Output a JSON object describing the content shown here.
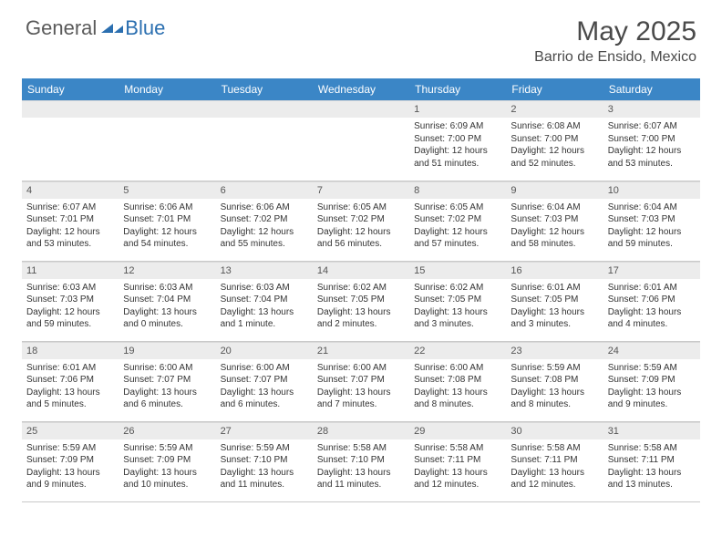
{
  "logo": {
    "text_general": "General",
    "text_blue": "Blue"
  },
  "title": "May 2025",
  "location": "Barrio de Ensido, Mexico",
  "colors": {
    "header_bg": "#3b86c6",
    "header_text": "#ffffff",
    "daynum_bg": "#ececec",
    "border": "#c9c9c9",
    "body_text": "#333333",
    "title_text": "#4a4a4a",
    "logo_general": "#5a5a5a",
    "logo_blue": "#2b6fb0"
  },
  "typography": {
    "title_fontsize": 30,
    "location_fontsize": 16,
    "header_cell_fontsize": 12,
    "daynum_fontsize": 11,
    "body_fontsize": 10
  },
  "day_headers": [
    "Sunday",
    "Monday",
    "Tuesday",
    "Wednesday",
    "Thursday",
    "Friday",
    "Saturday"
  ],
  "weeks": [
    [
      {
        "day": "",
        "sunrise": "",
        "sunset": "",
        "daylight": ""
      },
      {
        "day": "",
        "sunrise": "",
        "sunset": "",
        "daylight": ""
      },
      {
        "day": "",
        "sunrise": "",
        "sunset": "",
        "daylight": ""
      },
      {
        "day": "",
        "sunrise": "",
        "sunset": "",
        "daylight": ""
      },
      {
        "day": "1",
        "sunrise": "Sunrise: 6:09 AM",
        "sunset": "Sunset: 7:00 PM",
        "daylight": "Daylight: 12 hours and 51 minutes."
      },
      {
        "day": "2",
        "sunrise": "Sunrise: 6:08 AM",
        "sunset": "Sunset: 7:00 PM",
        "daylight": "Daylight: 12 hours and 52 minutes."
      },
      {
        "day": "3",
        "sunrise": "Sunrise: 6:07 AM",
        "sunset": "Sunset: 7:00 PM",
        "daylight": "Daylight: 12 hours and 53 minutes."
      }
    ],
    [
      {
        "day": "4",
        "sunrise": "Sunrise: 6:07 AM",
        "sunset": "Sunset: 7:01 PM",
        "daylight": "Daylight: 12 hours and 53 minutes."
      },
      {
        "day": "5",
        "sunrise": "Sunrise: 6:06 AM",
        "sunset": "Sunset: 7:01 PM",
        "daylight": "Daylight: 12 hours and 54 minutes."
      },
      {
        "day": "6",
        "sunrise": "Sunrise: 6:06 AM",
        "sunset": "Sunset: 7:02 PM",
        "daylight": "Daylight: 12 hours and 55 minutes."
      },
      {
        "day": "7",
        "sunrise": "Sunrise: 6:05 AM",
        "sunset": "Sunset: 7:02 PM",
        "daylight": "Daylight: 12 hours and 56 minutes."
      },
      {
        "day": "8",
        "sunrise": "Sunrise: 6:05 AM",
        "sunset": "Sunset: 7:02 PM",
        "daylight": "Daylight: 12 hours and 57 minutes."
      },
      {
        "day": "9",
        "sunrise": "Sunrise: 6:04 AM",
        "sunset": "Sunset: 7:03 PM",
        "daylight": "Daylight: 12 hours and 58 minutes."
      },
      {
        "day": "10",
        "sunrise": "Sunrise: 6:04 AM",
        "sunset": "Sunset: 7:03 PM",
        "daylight": "Daylight: 12 hours and 59 minutes."
      }
    ],
    [
      {
        "day": "11",
        "sunrise": "Sunrise: 6:03 AM",
        "sunset": "Sunset: 7:03 PM",
        "daylight": "Daylight: 12 hours and 59 minutes."
      },
      {
        "day": "12",
        "sunrise": "Sunrise: 6:03 AM",
        "sunset": "Sunset: 7:04 PM",
        "daylight": "Daylight: 13 hours and 0 minutes."
      },
      {
        "day": "13",
        "sunrise": "Sunrise: 6:03 AM",
        "sunset": "Sunset: 7:04 PM",
        "daylight": "Daylight: 13 hours and 1 minute."
      },
      {
        "day": "14",
        "sunrise": "Sunrise: 6:02 AM",
        "sunset": "Sunset: 7:05 PM",
        "daylight": "Daylight: 13 hours and 2 minutes."
      },
      {
        "day": "15",
        "sunrise": "Sunrise: 6:02 AM",
        "sunset": "Sunset: 7:05 PM",
        "daylight": "Daylight: 13 hours and 3 minutes."
      },
      {
        "day": "16",
        "sunrise": "Sunrise: 6:01 AM",
        "sunset": "Sunset: 7:05 PM",
        "daylight": "Daylight: 13 hours and 3 minutes."
      },
      {
        "day": "17",
        "sunrise": "Sunrise: 6:01 AM",
        "sunset": "Sunset: 7:06 PM",
        "daylight": "Daylight: 13 hours and 4 minutes."
      }
    ],
    [
      {
        "day": "18",
        "sunrise": "Sunrise: 6:01 AM",
        "sunset": "Sunset: 7:06 PM",
        "daylight": "Daylight: 13 hours and 5 minutes."
      },
      {
        "day": "19",
        "sunrise": "Sunrise: 6:00 AM",
        "sunset": "Sunset: 7:07 PM",
        "daylight": "Daylight: 13 hours and 6 minutes."
      },
      {
        "day": "20",
        "sunrise": "Sunrise: 6:00 AM",
        "sunset": "Sunset: 7:07 PM",
        "daylight": "Daylight: 13 hours and 6 minutes."
      },
      {
        "day": "21",
        "sunrise": "Sunrise: 6:00 AM",
        "sunset": "Sunset: 7:07 PM",
        "daylight": "Daylight: 13 hours and 7 minutes."
      },
      {
        "day": "22",
        "sunrise": "Sunrise: 6:00 AM",
        "sunset": "Sunset: 7:08 PM",
        "daylight": "Daylight: 13 hours and 8 minutes."
      },
      {
        "day": "23",
        "sunrise": "Sunrise: 5:59 AM",
        "sunset": "Sunset: 7:08 PM",
        "daylight": "Daylight: 13 hours and 8 minutes."
      },
      {
        "day": "24",
        "sunrise": "Sunrise: 5:59 AM",
        "sunset": "Sunset: 7:09 PM",
        "daylight": "Daylight: 13 hours and 9 minutes."
      }
    ],
    [
      {
        "day": "25",
        "sunrise": "Sunrise: 5:59 AM",
        "sunset": "Sunset: 7:09 PM",
        "daylight": "Daylight: 13 hours and 9 minutes."
      },
      {
        "day": "26",
        "sunrise": "Sunrise: 5:59 AM",
        "sunset": "Sunset: 7:09 PM",
        "daylight": "Daylight: 13 hours and 10 minutes."
      },
      {
        "day": "27",
        "sunrise": "Sunrise: 5:59 AM",
        "sunset": "Sunset: 7:10 PM",
        "daylight": "Daylight: 13 hours and 11 minutes."
      },
      {
        "day": "28",
        "sunrise": "Sunrise: 5:58 AM",
        "sunset": "Sunset: 7:10 PM",
        "daylight": "Daylight: 13 hours and 11 minutes."
      },
      {
        "day": "29",
        "sunrise": "Sunrise: 5:58 AM",
        "sunset": "Sunset: 7:11 PM",
        "daylight": "Daylight: 13 hours and 12 minutes."
      },
      {
        "day": "30",
        "sunrise": "Sunrise: 5:58 AM",
        "sunset": "Sunset: 7:11 PM",
        "daylight": "Daylight: 13 hours and 12 minutes."
      },
      {
        "day": "31",
        "sunrise": "Sunrise: 5:58 AM",
        "sunset": "Sunset: 7:11 PM",
        "daylight": "Daylight: 13 hours and 13 minutes."
      }
    ]
  ]
}
